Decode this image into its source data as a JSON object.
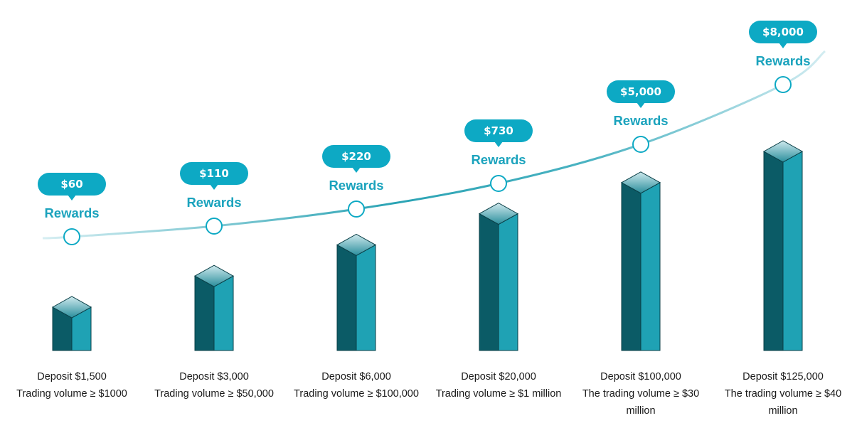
{
  "chart_data": {
    "type": "bar",
    "reward_label": "Rewards",
    "categories": [
      {
        "lines": [
          "Deposit $1,500",
          "Trading volume ≥ $1000"
        ]
      },
      {
        "lines": [
          "Deposit $3,000",
          "Trading volume ≥ $50,000"
        ]
      },
      {
        "lines": [
          "Deposit $6,000",
          "Trading volume ≥ $100,000"
        ]
      },
      {
        "lines": [
          "Deposit $20,000",
          "Trading volume ≥ $1 million"
        ]
      },
      {
        "lines": [
          "Deposit $100,000",
          "The trading volume ≥ $30",
          "million"
        ]
      },
      {
        "lines": [
          "Deposit $125,000",
          "The trading volume ≥ $40",
          "million"
        ]
      }
    ],
    "rewards": [
      "$60",
      "$110",
      "$220",
      "$730",
      "$5,000",
      "$8,000"
    ],
    "bar_levels": [
      1,
      2,
      3,
      4,
      5,
      6
    ],
    "colors": {
      "bar_dark": "#0b5b66",
      "bar_light": "#1fa2b4",
      "bar_top": "#7fc6cf",
      "bubble": "#0da9c4",
      "reward_text": "#1ba3bd",
      "curve": "#2fa6b6"
    }
  }
}
